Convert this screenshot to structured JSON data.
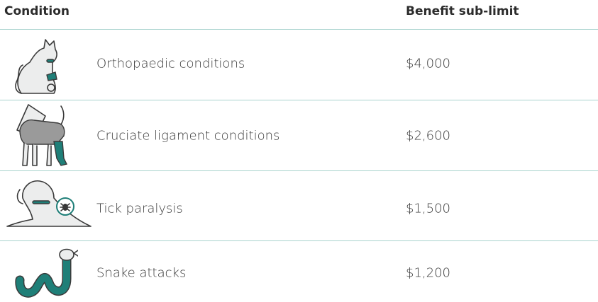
{
  "table": {
    "header": [
      "Condition",
      "Benefit sub-limit"
    ],
    "rows": [
      [
        "Orthopaedic conditions",
        "$4,000"
      ],
      [
        "Cruciate ligament conditions",
        "$2,600"
      ],
      [
        "Tick paralysis",
        "$1,500"
      ],
      [
        "Snake attacks",
        "$1,200"
      ]
    ]
  }
}
